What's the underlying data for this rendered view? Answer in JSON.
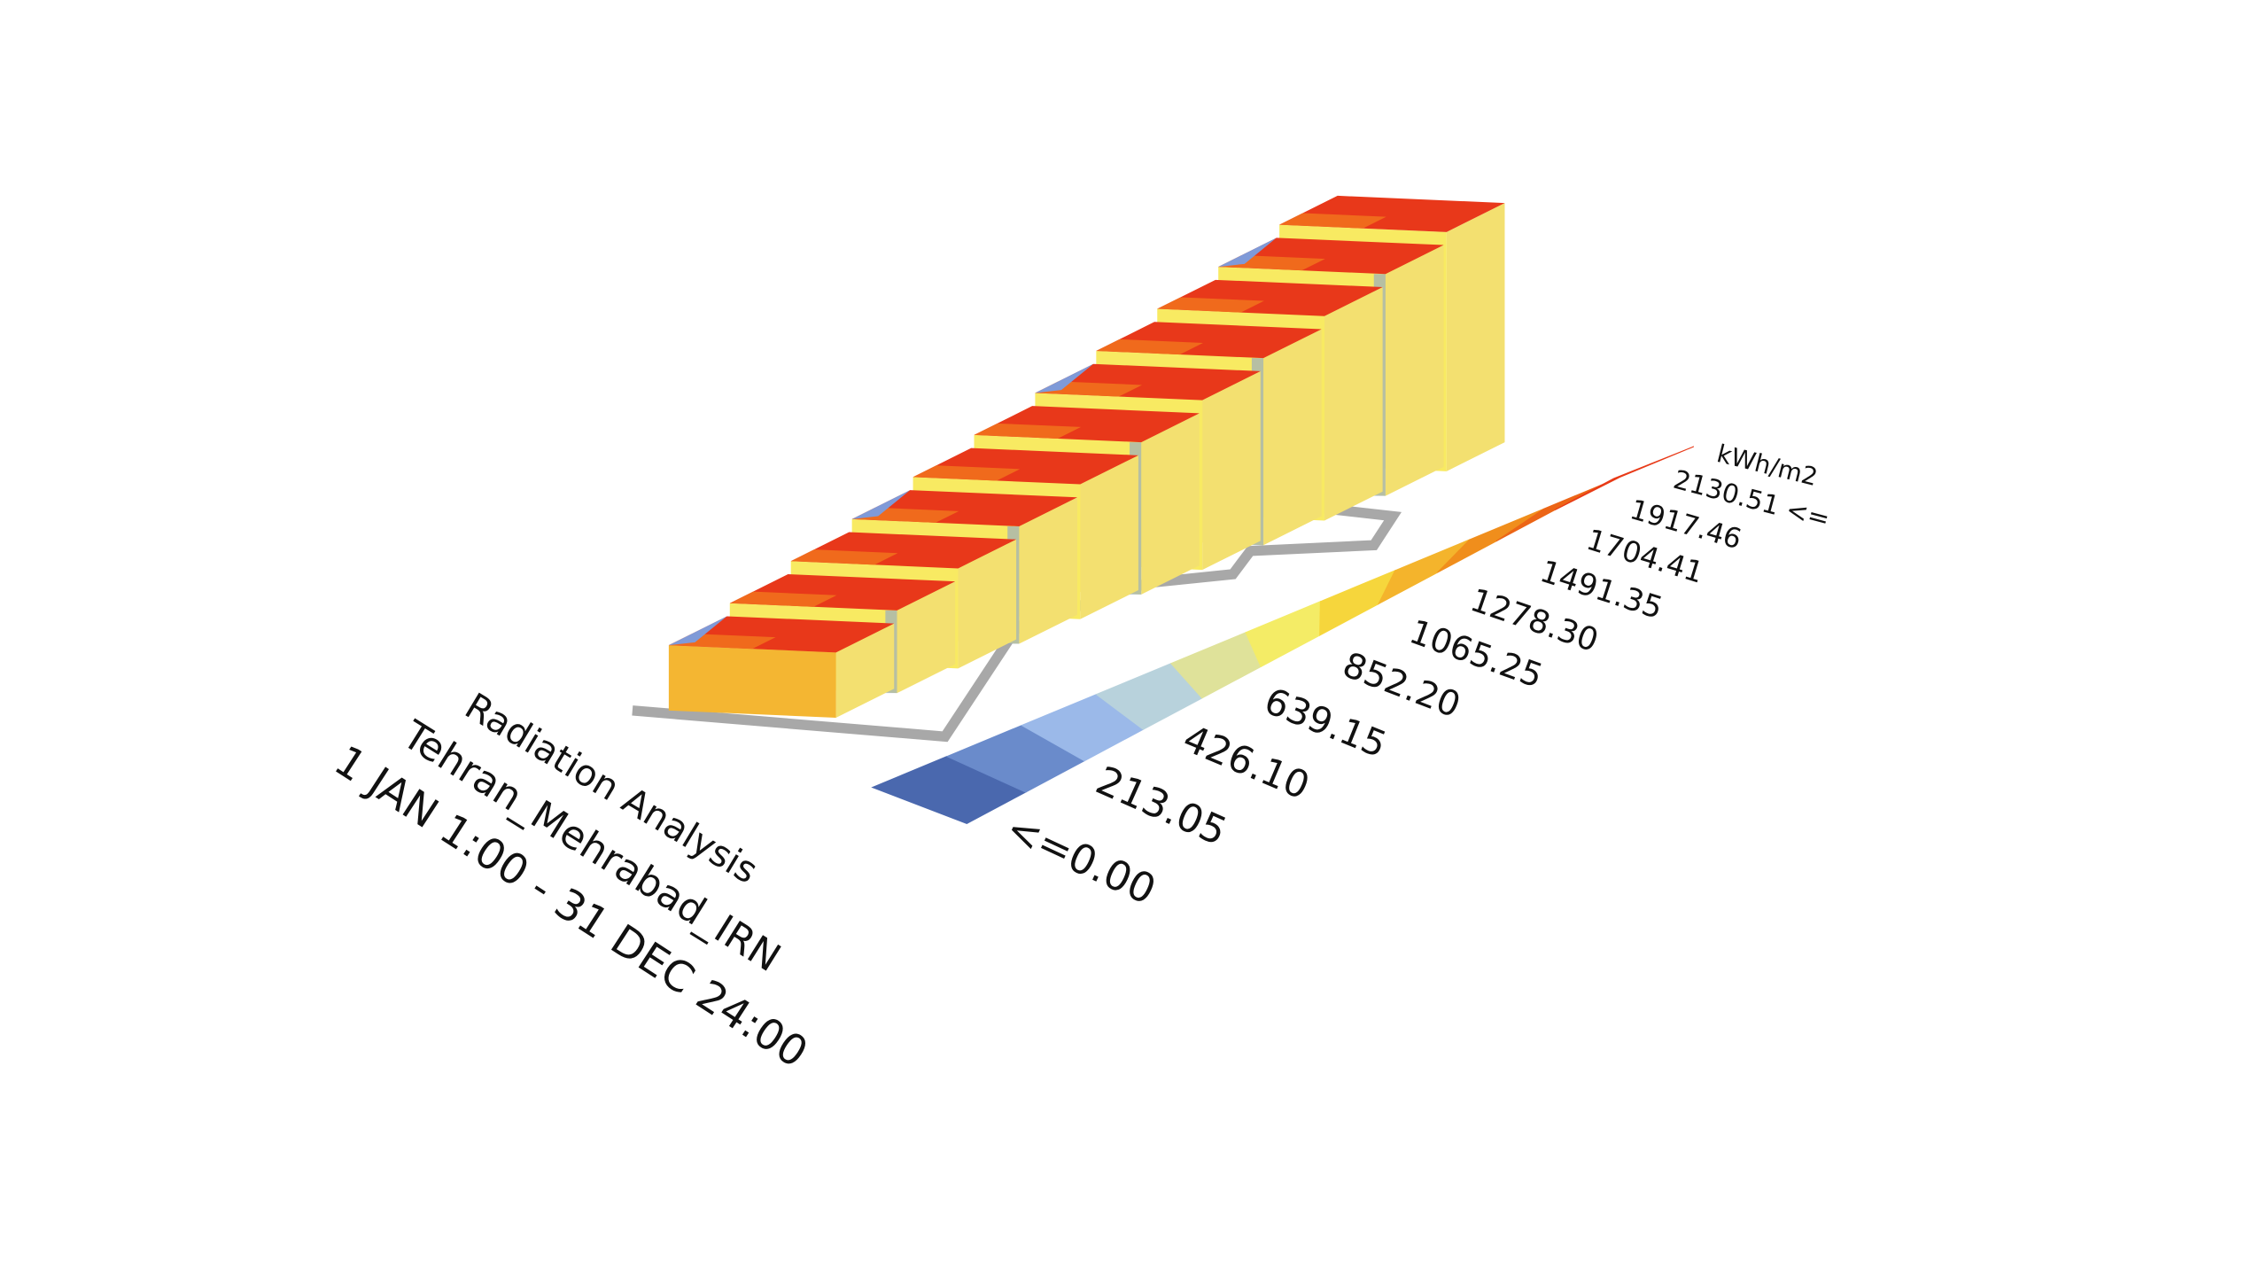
{
  "title": {
    "line1": "Radiation Analysis",
    "line2": "Tehran_Mehrabad_IRN",
    "line3": "1 JAN 1:00 - 31 DEC 24:00"
  },
  "legend": {
    "unit": "kWh/m2",
    "labels": [
      "<=0.00",
      "213.05",
      "426.10",
      "639.15",
      "852.20",
      "1065.25",
      "1278.30",
      "1491.35",
      "1704.41",
      "1917.46",
      "2130.51 <="
    ],
    "colors": [
      "#4a68ae",
      "#6a8bcb",
      "#9bb9e9",
      "#b8d2dc",
      "#dfe29a",
      "#f4ec66",
      "#f6d63c",
      "#f4b42c",
      "#f08e1c",
      "#ec6516",
      "#e83a18"
    ]
  },
  "colors": {
    "face_yellow": "#f8ea62",
    "face_orange": "#f4b632",
    "roof_red": "#e8381a",
    "roof_orange": "#f06a1c",
    "shade_blue": "#7f9ad8",
    "outline_gray": "#a8a8a8"
  }
}
